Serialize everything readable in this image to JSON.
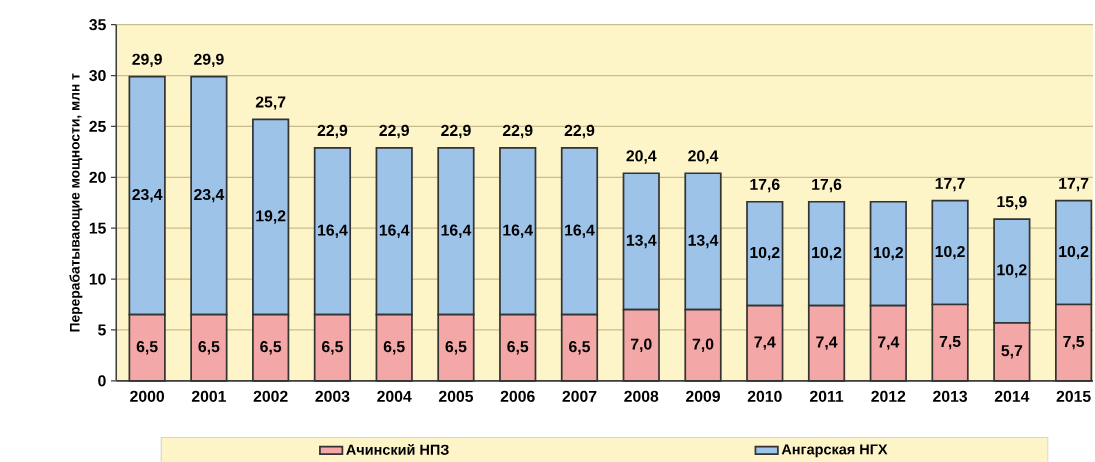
{
  "chart_data": {
    "type": "bar",
    "stacked": true,
    "ylabel": "Перерабатывающие мощности, млн т",
    "categories": [
      "2000",
      "2001",
      "2002",
      "2003",
      "2004",
      "2005",
      "2006",
      "2007",
      "2008",
      "2009",
      "2010",
      "2011",
      "2012",
      "2013",
      "2014",
      "2015"
    ],
    "series": [
      {
        "name": "Ачинский НПЗ",
        "color": "#f4a7a7",
        "values": [
          6.5,
          6.5,
          6.5,
          6.5,
          6.5,
          6.5,
          6.5,
          6.5,
          7.0,
          7.0,
          7.4,
          7.4,
          7.4,
          7.5,
          5.7,
          7.5
        ],
        "value_labels": [
          "6,5",
          "6,5",
          "6,5",
          "6,5",
          "6,5",
          "6,5",
          "6,5",
          "6,5",
          "7,0",
          "7,0",
          "7,4",
          "7,4",
          "7,4",
          "7,5",
          "5,7",
          "7,5"
        ]
      },
      {
        "name": "Ангарская НГХ",
        "color": "#9dc3e8",
        "values": [
          23.4,
          23.4,
          19.2,
          16.4,
          16.4,
          16.4,
          16.4,
          16.4,
          13.4,
          13.4,
          10.2,
          10.2,
          10.2,
          10.2,
          10.2,
          10.2
        ],
        "value_labels": [
          "23,4",
          "23,4",
          "19,2",
          "16,4",
          "16,4",
          "16,4",
          "16,4",
          "16,4",
          "13,4",
          "13,4",
          "10,2",
          "10,2",
          "10,2",
          "10,2",
          "10,2",
          "10,2"
        ]
      }
    ],
    "totals": [
      "29,9",
      "29,9",
      "25,7",
      "22,9",
      "22,9",
      "22,9",
      "22,9",
      "22,9",
      "20,4",
      "20,4",
      "17,6",
      "17,6",
      null,
      "17,7",
      "15,9",
      "17,7"
    ],
    "ylim": [
      0,
      35
    ],
    "yticks": [
      0,
      5,
      10,
      15,
      20,
      25,
      30,
      35
    ],
    "grid": "y",
    "legend": "bottom"
  }
}
